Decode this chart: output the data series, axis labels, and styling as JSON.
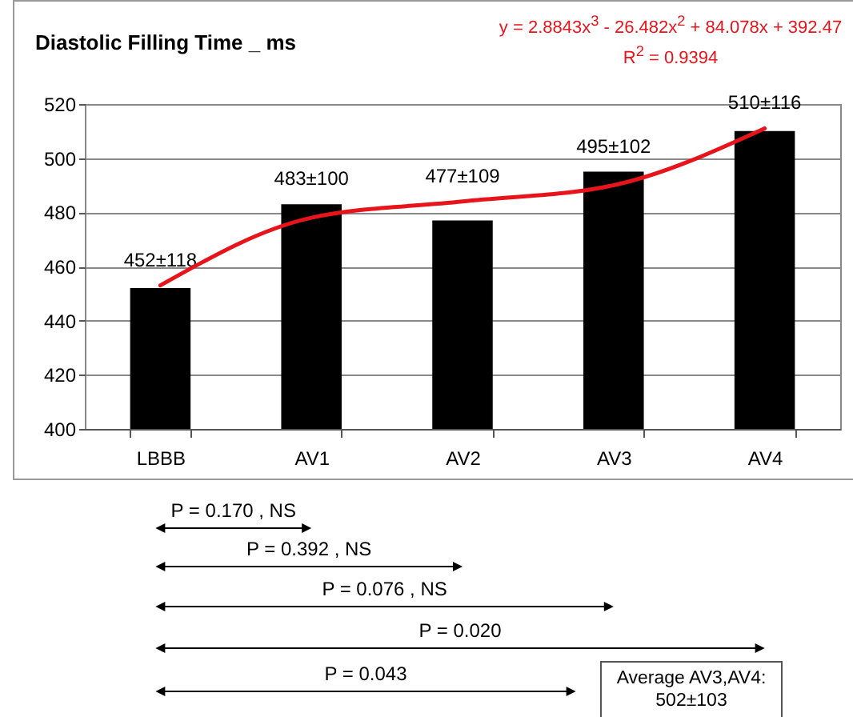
{
  "chart_data": {
    "type": "bar",
    "title": "Diastolic Filling Time _ ms",
    "categories": [
      "LBBB",
      "AV1",
      "AV2",
      "AV3",
      "AV4"
    ],
    "series": [
      {
        "color": "#000000",
        "values": [
          452,
          483,
          477,
          495,
          510
        ],
        "value_labels": [
          "452±118",
          "483±100",
          "477±109",
          "495±102",
          "510±116"
        ]
      },
      {
        "type": "line",
        "color": "#e8141c",
        "values": [
          453,
          478,
          484,
          490,
          511
        ]
      }
    ],
    "ylim": [
      400,
      520
    ],
    "yticks": [
      400,
      420,
      440,
      460,
      480,
      500,
      520
    ],
    "grid": "y",
    "annotations": [
      "y = 2.8843x$^{3}$ - 26.482x$^{2}$ + 84.078x + 392.47",
      "R$^{2}$ = 0.9394",
      "P = 0.170 , NS",
      "P = 0.392 , NS",
      "P = 0.076 , NS",
      "P = 0.020",
      "P = 0.043",
      "Average AV3,AV4: 502±103"
    ]
  }
}
